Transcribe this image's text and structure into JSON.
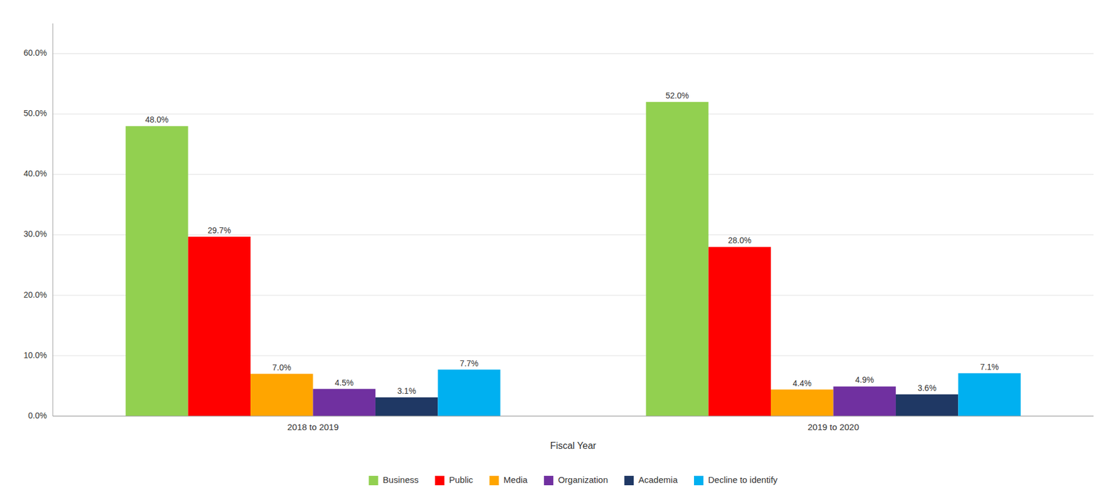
{
  "chart_data": {
    "type": "bar",
    "x_label": "Fiscal Year",
    "categories": [
      "2018 to 2019",
      "2019 to 2020"
    ],
    "series": [
      {
        "name": "Business",
        "color": "#92d050",
        "values": [
          48.0,
          52.0
        ],
        "value_labels": [
          "48.0%",
          "52.0%"
        ]
      },
      {
        "name": "Public",
        "color": "#ff0000",
        "values": [
          29.7,
          28.0
        ],
        "value_labels": [
          "29.7%",
          "28.0%"
        ]
      },
      {
        "name": "Media",
        "color": "#ffa500",
        "values": [
          7.0,
          4.4
        ],
        "value_labels": [
          "7.0%",
          "4.4%"
        ]
      },
      {
        "name": "Organization",
        "color": "#7030a0",
        "values": [
          4.5,
          4.9
        ],
        "value_labels": [
          "4.5%",
          "4.9%"
        ]
      },
      {
        "name": "Academia",
        "color": "#1f3864",
        "values": [
          3.1,
          3.6
        ],
        "value_labels": [
          "3.1%",
          "3.6%"
        ]
      },
      {
        "name": "Decline to identify",
        "color": "#00b0f0",
        "values": [
          7.7,
          7.1
        ],
        "value_labels": [
          "7.7%",
          "7.1%"
        ]
      }
    ],
    "ylim": [
      0,
      65
    ],
    "yticks": [
      {
        "value": 0,
        "label": "0.0%"
      },
      {
        "value": 10,
        "label": "10.0%"
      },
      {
        "value": 20,
        "label": "20.0%"
      },
      {
        "value": 30,
        "label": "30.0%"
      },
      {
        "value": 40,
        "label": "40.0%"
      },
      {
        "value": 50,
        "label": "50.0%"
      },
      {
        "value": 60,
        "label": "60.0%"
      }
    ],
    "grid": true,
    "legend": "bottom",
    "data_labels": true
  }
}
